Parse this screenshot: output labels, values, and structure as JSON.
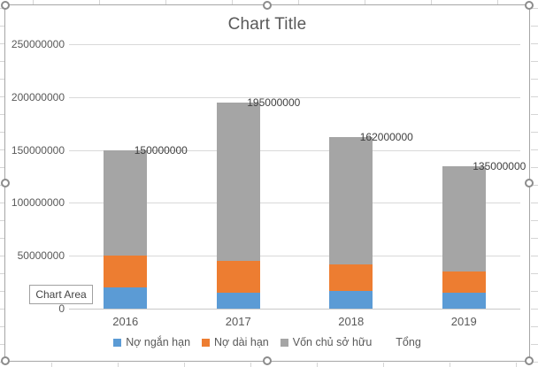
{
  "chart_data": {
    "type": "bar",
    "stacked": true,
    "title": "Chart Title",
    "categories": [
      "2016",
      "2017",
      "2018",
      "2019"
    ],
    "series": [
      {
        "name": "Nợ ngắn hạn",
        "color": "#5b9bd5",
        "values": [
          20000000,
          15000000,
          17000000,
          15000000
        ]
      },
      {
        "name": "Nợ dài hạn",
        "color": "#ed7d31",
        "values": [
          30000000,
          30000000,
          25000000,
          20000000
        ]
      },
      {
        "name": "Vốn chủ sở hữu",
        "color": "#a5a5a5",
        "values": [
          100000000,
          150000000,
          120000000,
          100000000
        ]
      },
      {
        "name": "Tổng",
        "color": "none",
        "labels_only": true,
        "values": [
          150000000,
          195000000,
          162000000,
          135000000
        ]
      }
    ],
    "total_labels": [
      "150000000",
      "195000000",
      "162000000",
      "135000000"
    ],
    "y_axis": {
      "min": 0,
      "max": 250000000,
      "tick_step": 50000000,
      "tick_labels": [
        "0",
        "50000000",
        "100000000",
        "150000000",
        "200000000",
        "250000000"
      ]
    },
    "legend_position": "bottom",
    "gridlines": true
  },
  "tooltip": {
    "label": "Chart Area"
  },
  "colors": {
    "series_blue": "#5b9bd5",
    "series_orange": "#ed7d31",
    "series_gray": "#a5a5a5",
    "text_gray": "#595959",
    "gridline": "#d9d9d9",
    "chart_border": "#a6a6a6"
  }
}
